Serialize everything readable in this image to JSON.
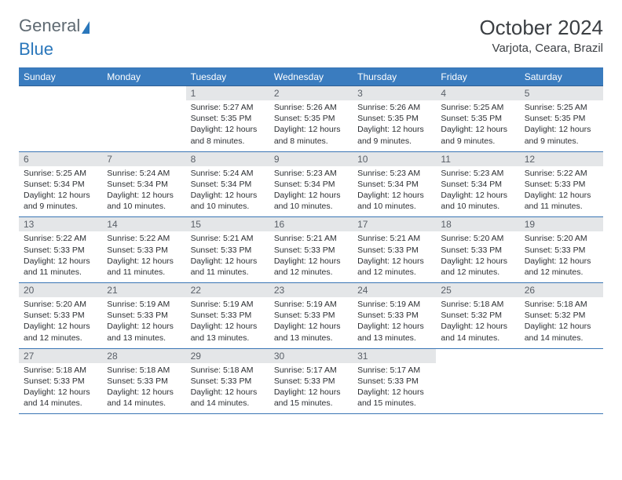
{
  "brand": {
    "part1": "General",
    "part2": "Blue"
  },
  "title": "October 2024",
  "location": "Varjota, Ceara, Brazil",
  "colors": {
    "header_bg": "#3a7cbf",
    "header_text": "#ffffff",
    "daynum_bg": "#e4e6e8",
    "border": "#3a76b5",
    "body_text": "#2c2f33",
    "logo_gray": "#5f6a72",
    "logo_blue": "#2a77bb"
  },
  "weekdays": [
    "Sunday",
    "Monday",
    "Tuesday",
    "Wednesday",
    "Thursday",
    "Friday",
    "Saturday"
  ],
  "weeks": [
    [
      {
        "n": "",
        "sr": "",
        "ss": "",
        "dl": "",
        "empty": true
      },
      {
        "n": "",
        "sr": "",
        "ss": "",
        "dl": "",
        "empty": true
      },
      {
        "n": "1",
        "sr": "Sunrise: 5:27 AM",
        "ss": "Sunset: 5:35 PM",
        "dl": "Daylight: 12 hours and 8 minutes."
      },
      {
        "n": "2",
        "sr": "Sunrise: 5:26 AM",
        "ss": "Sunset: 5:35 PM",
        "dl": "Daylight: 12 hours and 8 minutes."
      },
      {
        "n": "3",
        "sr": "Sunrise: 5:26 AM",
        "ss": "Sunset: 5:35 PM",
        "dl": "Daylight: 12 hours and 9 minutes."
      },
      {
        "n": "4",
        "sr": "Sunrise: 5:25 AM",
        "ss": "Sunset: 5:35 PM",
        "dl": "Daylight: 12 hours and 9 minutes."
      },
      {
        "n": "5",
        "sr": "Sunrise: 5:25 AM",
        "ss": "Sunset: 5:35 PM",
        "dl": "Daylight: 12 hours and 9 minutes."
      }
    ],
    [
      {
        "n": "6",
        "sr": "Sunrise: 5:25 AM",
        "ss": "Sunset: 5:34 PM",
        "dl": "Daylight: 12 hours and 9 minutes."
      },
      {
        "n": "7",
        "sr": "Sunrise: 5:24 AM",
        "ss": "Sunset: 5:34 PM",
        "dl": "Daylight: 12 hours and 10 minutes."
      },
      {
        "n": "8",
        "sr": "Sunrise: 5:24 AM",
        "ss": "Sunset: 5:34 PM",
        "dl": "Daylight: 12 hours and 10 minutes."
      },
      {
        "n": "9",
        "sr": "Sunrise: 5:23 AM",
        "ss": "Sunset: 5:34 PM",
        "dl": "Daylight: 12 hours and 10 minutes."
      },
      {
        "n": "10",
        "sr": "Sunrise: 5:23 AM",
        "ss": "Sunset: 5:34 PM",
        "dl": "Daylight: 12 hours and 10 minutes."
      },
      {
        "n": "11",
        "sr": "Sunrise: 5:23 AM",
        "ss": "Sunset: 5:34 PM",
        "dl": "Daylight: 12 hours and 10 minutes."
      },
      {
        "n": "12",
        "sr": "Sunrise: 5:22 AM",
        "ss": "Sunset: 5:33 PM",
        "dl": "Daylight: 12 hours and 11 minutes."
      }
    ],
    [
      {
        "n": "13",
        "sr": "Sunrise: 5:22 AM",
        "ss": "Sunset: 5:33 PM",
        "dl": "Daylight: 12 hours and 11 minutes."
      },
      {
        "n": "14",
        "sr": "Sunrise: 5:22 AM",
        "ss": "Sunset: 5:33 PM",
        "dl": "Daylight: 12 hours and 11 minutes."
      },
      {
        "n": "15",
        "sr": "Sunrise: 5:21 AM",
        "ss": "Sunset: 5:33 PM",
        "dl": "Daylight: 12 hours and 11 minutes."
      },
      {
        "n": "16",
        "sr": "Sunrise: 5:21 AM",
        "ss": "Sunset: 5:33 PM",
        "dl": "Daylight: 12 hours and 12 minutes."
      },
      {
        "n": "17",
        "sr": "Sunrise: 5:21 AM",
        "ss": "Sunset: 5:33 PM",
        "dl": "Daylight: 12 hours and 12 minutes."
      },
      {
        "n": "18",
        "sr": "Sunrise: 5:20 AM",
        "ss": "Sunset: 5:33 PM",
        "dl": "Daylight: 12 hours and 12 minutes."
      },
      {
        "n": "19",
        "sr": "Sunrise: 5:20 AM",
        "ss": "Sunset: 5:33 PM",
        "dl": "Daylight: 12 hours and 12 minutes."
      }
    ],
    [
      {
        "n": "20",
        "sr": "Sunrise: 5:20 AM",
        "ss": "Sunset: 5:33 PM",
        "dl": "Daylight: 12 hours and 12 minutes."
      },
      {
        "n": "21",
        "sr": "Sunrise: 5:19 AM",
        "ss": "Sunset: 5:33 PM",
        "dl": "Daylight: 12 hours and 13 minutes."
      },
      {
        "n": "22",
        "sr": "Sunrise: 5:19 AM",
        "ss": "Sunset: 5:33 PM",
        "dl": "Daylight: 12 hours and 13 minutes."
      },
      {
        "n": "23",
        "sr": "Sunrise: 5:19 AM",
        "ss": "Sunset: 5:33 PM",
        "dl": "Daylight: 12 hours and 13 minutes."
      },
      {
        "n": "24",
        "sr": "Sunrise: 5:19 AM",
        "ss": "Sunset: 5:33 PM",
        "dl": "Daylight: 12 hours and 13 minutes."
      },
      {
        "n": "25",
        "sr": "Sunrise: 5:18 AM",
        "ss": "Sunset: 5:32 PM",
        "dl": "Daylight: 12 hours and 14 minutes."
      },
      {
        "n": "26",
        "sr": "Sunrise: 5:18 AM",
        "ss": "Sunset: 5:32 PM",
        "dl": "Daylight: 12 hours and 14 minutes."
      }
    ],
    [
      {
        "n": "27",
        "sr": "Sunrise: 5:18 AM",
        "ss": "Sunset: 5:33 PM",
        "dl": "Daylight: 12 hours and 14 minutes."
      },
      {
        "n": "28",
        "sr": "Sunrise: 5:18 AM",
        "ss": "Sunset: 5:33 PM",
        "dl": "Daylight: 12 hours and 14 minutes."
      },
      {
        "n": "29",
        "sr": "Sunrise: 5:18 AM",
        "ss": "Sunset: 5:33 PM",
        "dl": "Daylight: 12 hours and 14 minutes."
      },
      {
        "n": "30",
        "sr": "Sunrise: 5:17 AM",
        "ss": "Sunset: 5:33 PM",
        "dl": "Daylight: 12 hours and 15 minutes."
      },
      {
        "n": "31",
        "sr": "Sunrise: 5:17 AM",
        "ss": "Sunset: 5:33 PM",
        "dl": "Daylight: 12 hours and 15 minutes."
      },
      {
        "n": "",
        "sr": "",
        "ss": "",
        "dl": "",
        "empty": true
      },
      {
        "n": "",
        "sr": "",
        "ss": "",
        "dl": "",
        "empty": true
      }
    ]
  ]
}
